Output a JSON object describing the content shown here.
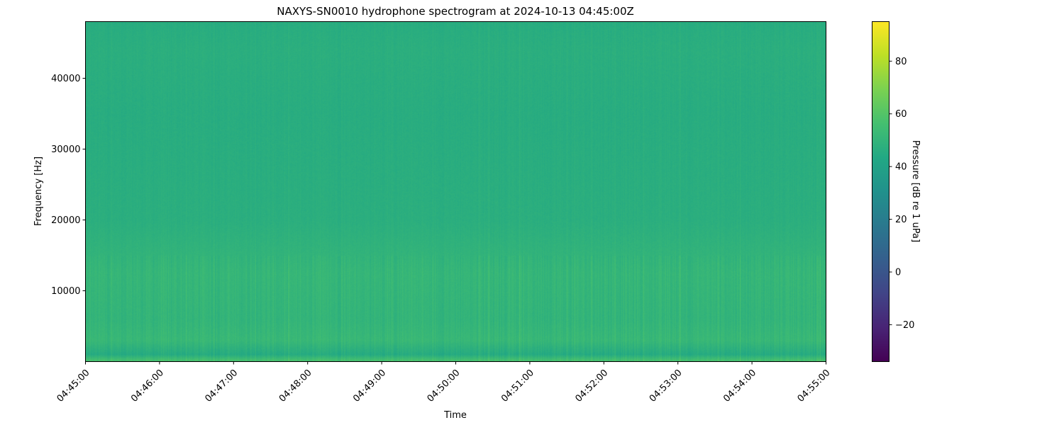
{
  "chart_data": {
    "type": "heatmap",
    "title": "NAXYS-SN0010 hydrophone spectrogram at 2024-10-13 04:45:00Z",
    "xlabel": "Time",
    "ylabel": "Frequency [Hz]",
    "x_ticks": [
      "04:45:00",
      "04:46:00",
      "04:47:00",
      "04:48:00",
      "04:49:00",
      "04:50:00",
      "04:51:00",
      "04:52:00",
      "04:53:00",
      "04:54:00",
      "04:55:00"
    ],
    "xlim": [
      "04:45:00",
      "04:55:00"
    ],
    "y_ticks": [
      10000,
      20000,
      30000,
      40000
    ],
    "ylim": [
      0,
      48000
    ],
    "colormap": "viridis",
    "colorbar": {
      "label": "Pressure [dB re 1 uPa]",
      "ticks": [
        -20,
        0,
        20,
        40,
        60,
        80
      ],
      "range": [
        -34,
        95
      ]
    },
    "frequency_profile_db": [
      {
        "freq_hz": 250,
        "level_db": 56
      },
      {
        "freq_hz": 1000,
        "level_db": 45
      },
      {
        "freq_hz": 3000,
        "level_db": 52
      },
      {
        "freq_hz": 6000,
        "level_db": 50
      },
      {
        "freq_hz": 12500,
        "level_db": 51
      },
      {
        "freq_hz": 20000,
        "level_db": 47
      },
      {
        "freq_hz": 35000,
        "level_db": 46
      },
      {
        "freq_hz": 44000,
        "level_db": 47
      },
      {
        "freq_hz": 48000,
        "level_db": 46
      }
    ]
  }
}
